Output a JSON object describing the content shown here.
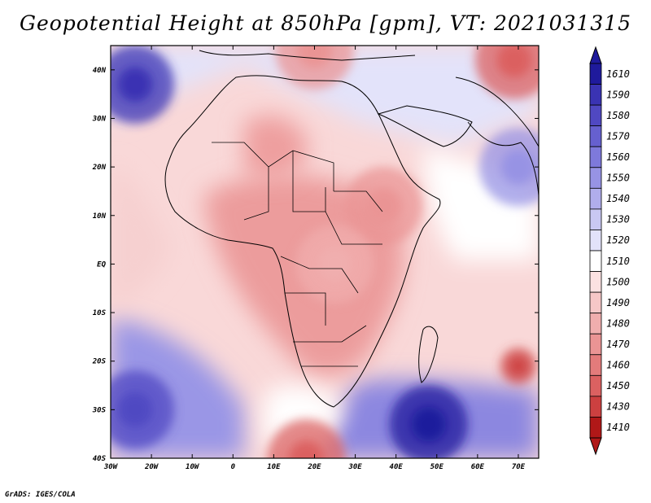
{
  "title": "Geopotential Height at 850hPa [gpm], VT: 2021031315",
  "footer": "GrADS: IGES/COLA",
  "map": {
    "projection": "lat-lon",
    "lon_range": [
      -30,
      75
    ],
    "lat_range": [
      -40,
      45
    ],
    "lon_ticks": [
      {
        "value": -30,
        "label": "30W"
      },
      {
        "value": -20,
        "label": "20W"
      },
      {
        "value": -10,
        "label": "10W"
      },
      {
        "value": 0,
        "label": "0"
      },
      {
        "value": 10,
        "label": "10E"
      },
      {
        "value": 20,
        "label": "20E"
      },
      {
        "value": 30,
        "label": "30E"
      },
      {
        "value": 40,
        "label": "40E"
      },
      {
        "value": 50,
        "label": "50E"
      },
      {
        "value": 60,
        "label": "60E"
      },
      {
        "value": 70,
        "label": "70E"
      }
    ],
    "lat_ticks": [
      {
        "value": 40,
        "label": "40N"
      },
      {
        "value": 30,
        "label": "30N"
      },
      {
        "value": 20,
        "label": "20N"
      },
      {
        "value": 10,
        "label": "10N"
      },
      {
        "value": 0,
        "label": "EQ"
      },
      {
        "value": -10,
        "label": "10S"
      },
      {
        "value": -20,
        "label": "20S"
      },
      {
        "value": -30,
        "label": "30S"
      },
      {
        "value": -40,
        "label": "40S"
      }
    ]
  },
  "colorbar": {
    "labels": [
      "1610",
      "1590",
      "1580",
      "1570",
      "1560",
      "1550",
      "1540",
      "1530",
      "1520",
      "1510",
      "1500",
      "1490",
      "1480",
      "1470",
      "1460",
      "1450",
      "1430",
      "1410"
    ],
    "colors": [
      "#1f1a9c",
      "#3a33b3",
      "#5048c2",
      "#6660cf",
      "#7e79db",
      "#9793e4",
      "#b0adec",
      "#c9c8f3",
      "#e2e2fa",
      "#ffffff",
      "#fbe1e1",
      "#f6c7c7",
      "#f0aeae",
      "#ea9494",
      "#e37b7b",
      "#db6161",
      "#cc4040",
      "#b01818"
    ]
  },
  "field": {
    "lows": [
      {
        "name": "south-africa-low",
        "lat": -40,
        "lon": 18,
        "value": 1450
      },
      {
        "name": "mascarene-cutoff-low",
        "lat": -21,
        "lon": 70,
        "value": 1430
      },
      {
        "name": "iran-low",
        "lat": 42,
        "lon": 69,
        "value": 1450
      },
      {
        "name": "mediterranean-low",
        "lat": 44,
        "lon": 20,
        "value": 1470
      },
      {
        "name": "ethiopia-low",
        "lat": 12,
        "lon": 37,
        "value": 1470
      },
      {
        "name": "congo-low",
        "lat": 0,
        "lon": 25,
        "value": 1475
      }
    ],
    "highs": [
      {
        "name": "azores-high",
        "lat": 37,
        "lon": -24,
        "value": 1590
      },
      {
        "name": "south-atlantic-high",
        "lat": -30,
        "lon": -24,
        "value": 1580
      },
      {
        "name": "south-indian-high",
        "lat": -33,
        "lon": 48,
        "value": 1600
      },
      {
        "name": "arabian-sea-high",
        "lat": 20,
        "lon": 70,
        "value": 1550
      }
    ]
  }
}
